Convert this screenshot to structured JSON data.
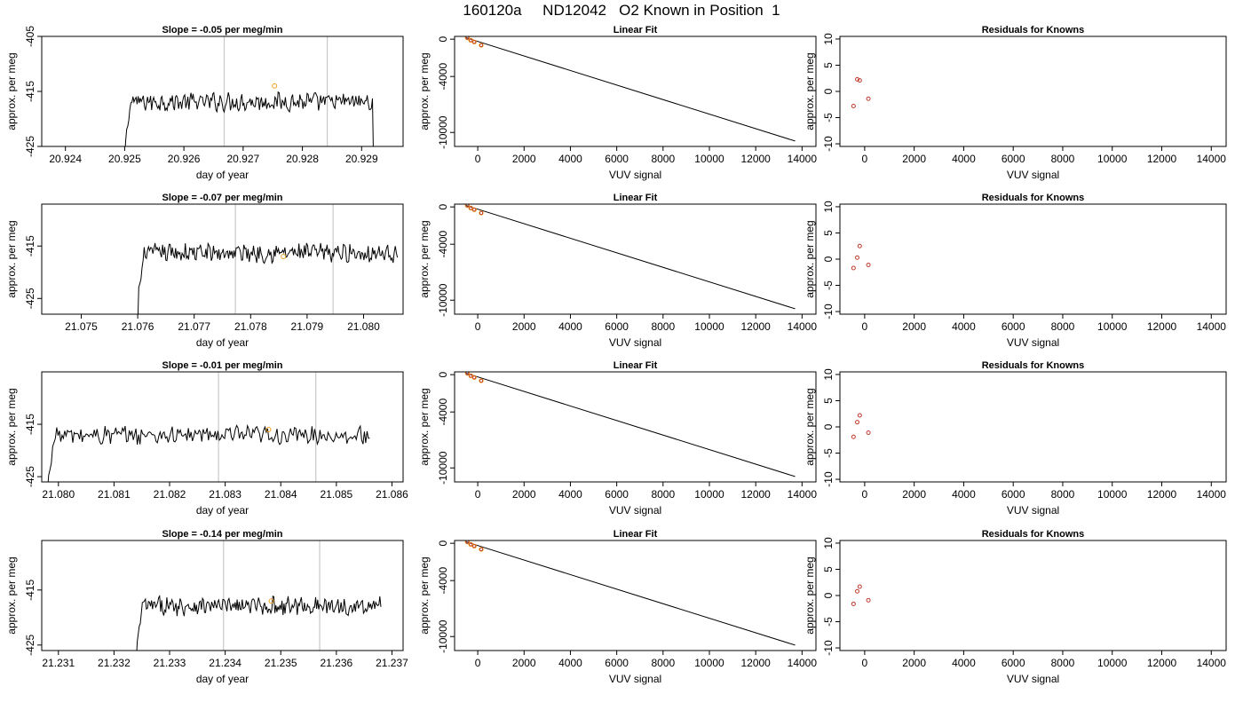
{
  "page_title": "160120a     ND12042   O2 Known in Position  1",
  "colors": {
    "trace": "#000000",
    "marker_orange": "#f0a020",
    "residual_red": "#c0392b",
    "vline": "#c8c8c8"
  },
  "chart_data": [
    {
      "type": "line",
      "title_prefix": "Slope =",
      "slope": "-0.05",
      "title_suffix": "per meg/min",
      "xlabel": "day of year",
      "ylabel": "approx. per meg",
      "xlim": [
        20.9236,
        20.9297
      ],
      "ylim": [
        -425,
        -405
      ],
      "xticks": [
        "20.924",
        "20.925",
        "20.926",
        "20.927",
        "20.928",
        "20.929"
      ],
      "yticks": [
        "-405",
        "-415",
        "-425"
      ],
      "vlines": [
        20.92668,
        20.92842
      ],
      "marker": [
        20.92753,
        -414
      ],
      "series": [
        {
          "x": [
            20.925,
            20.9292
          ],
          "y": [
            -416.9,
            -416.9
          ]
        }
      ]
    },
    {
      "type": "line",
      "title_prefix": "Slope =",
      "slope": "-0.07",
      "title_suffix": "per meg/min",
      "xlabel": "day of year",
      "ylabel": "approx. per meg",
      "xlim": [
        21.0743,
        21.0807
      ],
      "ylim": [
        -428,
        -407
      ],
      "xticks": [
        "21.075",
        "21.076",
        "21.077",
        "21.078",
        "21.079",
        "21.080"
      ],
      "yticks": [
        "-415",
        "-425"
      ],
      "vlines": [
        21.07773,
        21.07946
      ],
      "marker": [
        21.07858,
        -417
      ],
      "series": [
        {
          "x": [
            21.076,
            21.0806
          ],
          "y": [
            -416.3,
            -416.3
          ]
        }
      ]
    },
    {
      "type": "line",
      "title_prefix": "Slope =",
      "slope": "-0.01",
      "title_suffix": "per meg/min",
      "xlabel": "day of year",
      "ylabel": "approx. per meg",
      "xlim": [
        21.0797,
        21.0862
      ],
      "ylim": [
        -426,
        -405
      ],
      "xticks": [
        "21.080",
        "21.081",
        "21.082",
        "21.083",
        "21.084",
        "21.085",
        "21.086"
      ],
      "yticks": [
        "-415",
        "-425"
      ],
      "vlines": [
        21.08288,
        21.08463
      ],
      "marker": [
        21.08378,
        -416
      ],
      "series": [
        {
          "x": [
            21.0798,
            21.0856
          ],
          "y": [
            -417.1,
            -417.1
          ]
        }
      ]
    },
    {
      "type": "line",
      "title_prefix": "Slope =",
      "slope": "-0.14",
      "title_suffix": "per meg/min",
      "xlabel": "day of year",
      "ylabel": "approx. per meg",
      "xlim": [
        21.2307,
        21.2372
      ],
      "ylim": [
        -426,
        -406
      ],
      "xticks": [
        "21.231",
        "21.232",
        "21.233",
        "21.234",
        "21.235",
        "21.236",
        "21.237"
      ],
      "yticks": [
        "-415",
        "-425"
      ],
      "vlines": [
        21.23397,
        21.2357
      ],
      "marker": [
        21.23483,
        -417
      ],
      "series": [
        {
          "x": [
            21.2324,
            21.2368
          ],
          "y": [
            -417.9,
            -417.9
          ]
        }
      ]
    },
    {
      "type": "scatter",
      "title": "Linear Fit",
      "xlabel": "VUV signal",
      "ylabel": "approx. per meg",
      "xlim": [
        -1000,
        14600
      ],
      "ylim": [
        -11500,
        300
      ],
      "xticks": [
        "0",
        "2000",
        "4000",
        "6000",
        "8000",
        "10000",
        "12000",
        "14000"
      ],
      "yticks": [
        "0",
        "-4000",
        "-10000"
      ],
      "points": [
        [
          -450,
          150
        ],
        [
          -300,
          -120
        ],
        [
          -150,
          -300
        ],
        [
          150,
          -650
        ]
      ],
      "fit_line": [
        [
          -500,
          150
        ],
        [
          13700,
          -10920
        ]
      ]
    },
    {
      "type": "scatter",
      "title": "Linear Fit",
      "xlabel": "VUV signal",
      "ylabel": "approx. per meg",
      "xlim": [
        -1000,
        14600
      ],
      "ylim": [
        -11500,
        300
      ],
      "xticks": [
        "0",
        "2000",
        "4000",
        "6000",
        "8000",
        "10000",
        "12000",
        "14000"
      ],
      "yticks": [
        "0",
        "-4000",
        "-10000"
      ],
      "points": [
        [
          -450,
          150
        ],
        [
          -300,
          -120
        ],
        [
          -150,
          -300
        ],
        [
          150,
          -650
        ]
      ],
      "fit_line": [
        [
          -500,
          150
        ],
        [
          13700,
          -10920
        ]
      ]
    },
    {
      "type": "scatter",
      "title": "Linear Fit",
      "xlabel": "VUV signal",
      "ylabel": "approx. per meg",
      "xlim": [
        -1000,
        14600
      ],
      "ylim": [
        -11500,
        300
      ],
      "xticks": [
        "0",
        "2000",
        "4000",
        "6000",
        "8000",
        "10000",
        "12000",
        "14000"
      ],
      "yticks": [
        "0",
        "-4000",
        "-10000"
      ],
      "points": [
        [
          -450,
          150
        ],
        [
          -300,
          -120
        ],
        [
          -150,
          -300
        ],
        [
          150,
          -650
        ]
      ],
      "fit_line": [
        [
          -500,
          150
        ],
        [
          13700,
          -10920
        ]
      ]
    },
    {
      "type": "scatter",
      "title": "Linear Fit",
      "xlabel": "VUV signal",
      "ylabel": "approx. per meg",
      "xlim": [
        -1000,
        14600
      ],
      "ylim": [
        -11500,
        300
      ],
      "xticks": [
        "0",
        "2000",
        "4000",
        "6000",
        "8000",
        "10000",
        "12000",
        "14000"
      ],
      "yticks": [
        "0",
        "-4000",
        "-10000"
      ],
      "points": [
        [
          -450,
          150
        ],
        [
          -300,
          -120
        ],
        [
          -150,
          -300
        ],
        [
          150,
          -650
        ]
      ],
      "fit_line": [
        [
          -500,
          150
        ],
        [
          13700,
          -10920
        ]
      ]
    },
    {
      "type": "scatter",
      "title": "Residuals for Knowns",
      "xlabel": "VUV signal",
      "ylabel": "approx. per meg",
      "xlim": [
        -1000,
        14600
      ],
      "ylim": [
        -10.5,
        10.5
      ],
      "xticks": [
        "0",
        "2000",
        "4000",
        "6000",
        "8000",
        "10000",
        "12000",
        "14000"
      ],
      "yticks": [
        "10",
        "5",
        "0",
        "-5",
        "-10"
      ],
      "points": [
        [
          -450,
          -2.8
        ],
        [
          -300,
          2.3
        ],
        [
          -200,
          2.1
        ],
        [
          150,
          -1.4
        ]
      ]
    },
    {
      "type": "scatter",
      "title": "Residuals for Knowns",
      "xlabel": "VUV signal",
      "ylabel": "approx. per meg",
      "xlim": [
        -1000,
        14600
      ],
      "ylim": [
        -10.5,
        10.5
      ],
      "xticks": [
        "0",
        "2000",
        "4000",
        "6000",
        "8000",
        "10000",
        "12000",
        "14000"
      ],
      "yticks": [
        "10",
        "5",
        "0",
        "-5",
        "-10"
      ],
      "points": [
        [
          -450,
          -1.7
        ],
        [
          -300,
          0.3
        ],
        [
          -200,
          2.5
        ],
        [
          150,
          -1.1
        ]
      ]
    },
    {
      "type": "scatter",
      "title": "Residuals for Knowns",
      "xlabel": "VUV signal",
      "ylabel": "approx. per meg",
      "xlim": [
        -1000,
        14600
      ],
      "ylim": [
        -10.5,
        10.5
      ],
      "xticks": [
        "0",
        "2000",
        "4000",
        "6000",
        "8000",
        "10000",
        "12000",
        "14000"
      ],
      "yticks": [
        "10",
        "5",
        "0",
        "-5",
        "-10"
      ],
      "points": [
        [
          -450,
          -1.9
        ],
        [
          -300,
          0.9
        ],
        [
          -200,
          2.2
        ],
        [
          150,
          -1.1
        ]
      ]
    },
    {
      "type": "scatter",
      "title": "Residuals for Knowns",
      "xlabel": "VUV signal",
      "ylabel": "approx. per meg",
      "xlim": [
        -1000,
        14600
      ],
      "ylim": [
        -10.5,
        10.5
      ],
      "xticks": [
        "0",
        "2000",
        "4000",
        "6000",
        "8000",
        "10000",
        "12000",
        "14000"
      ],
      "yticks": [
        "10",
        "5",
        "0",
        "-5",
        "-10"
      ],
      "points": [
        [
          -450,
          -1.6
        ],
        [
          -300,
          0.8
        ],
        [
          -200,
          1.7
        ],
        [
          150,
          -0.9
        ]
      ]
    }
  ]
}
